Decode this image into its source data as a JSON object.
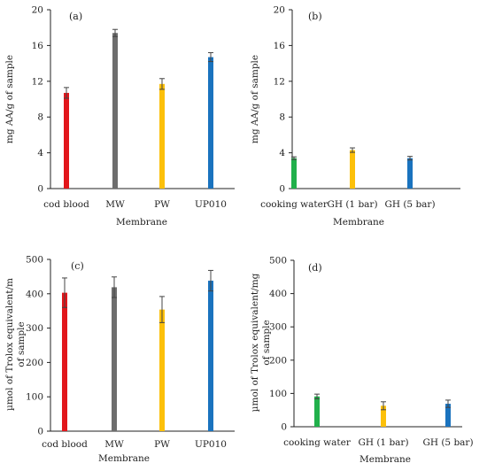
{
  "colors": {
    "red": "#e2161b",
    "gray": "#6d6d6d",
    "yellow": "#fcc00a",
    "blue": "#1a73be",
    "green": "#21b04b"
  },
  "chart_data": [
    {
      "type": "bar",
      "panel": "(a)",
      "categories": [
        "cod blood",
        "MW",
        "PW",
        "UP010"
      ],
      "series": [
        {
          "values": [
            10.7,
            17.4,
            11.7,
            14.7
          ],
          "errors": [
            0.6,
            0.4,
            0.6,
            0.5
          ]
        }
      ],
      "bar_colors": [
        "red",
        "gray",
        "yellow",
        "blue"
      ],
      "xlabel": "Membrane",
      "ylabel": "mg AA/g of sample",
      "ylim": [
        0,
        20
      ],
      "yticks": [
        0,
        4,
        8,
        12,
        16,
        20
      ]
    },
    {
      "type": "bar",
      "panel": "(b)",
      "categories": [
        "cooking water",
        "GH (1 bar)",
        "GH (5 bar)"
      ],
      "series": [
        {
          "values": [
            3.4,
            4.3,
            3.4
          ],
          "errors": [
            0.15,
            0.25,
            0.2
          ]
        }
      ],
      "bar_colors": [
        "green",
        "yellow",
        "blue"
      ],
      "xlabel": "Membrane",
      "ylabel": "mg AA/g of sample",
      "ylim": [
        0,
        20
      ],
      "yticks": [
        0,
        4,
        8,
        12,
        16,
        20
      ]
    },
    {
      "type": "bar",
      "panel": "(c)",
      "categories": [
        "cod blood",
        "MW",
        "PW",
        "UP010"
      ],
      "series": [
        {
          "values": [
            403,
            419,
            354,
            438
          ],
          "errors": [
            43,
            30,
            38,
            30
          ]
        }
      ],
      "bar_colors": [
        "red",
        "gray",
        "yellow",
        "blue"
      ],
      "xlabel": "Membrane",
      "ylabel": "µmol of Trolox equivalent/m of sample",
      "ylabel_lines": [
        "µmol of Trolox equivalent/m",
        "of sample"
      ],
      "ylim": [
        0,
        500
      ],
      "yticks": [
        0,
        100,
        200,
        300,
        400,
        500
      ]
    },
    {
      "type": "bar",
      "panel": "(d)",
      "categories": [
        "cooking water",
        "GH (1 bar)",
        "GH (5 bar)"
      ],
      "series": [
        {
          "values": [
            91,
            63,
            69
          ],
          "errors": [
            7,
            12,
            11
          ]
        }
      ],
      "bar_colors": [
        "green",
        "yellow",
        "blue"
      ],
      "xlabel": "Membrane",
      "ylabel": "µmol of Trolox equivalent/mg of sample",
      "ylabel_lines": [
        "µmol of Trolox equivalent/mg",
        "of sample"
      ],
      "ylim": [
        0,
        500
      ],
      "yticks": [
        0,
        100,
        200,
        300,
        400,
        500
      ]
    }
  ]
}
